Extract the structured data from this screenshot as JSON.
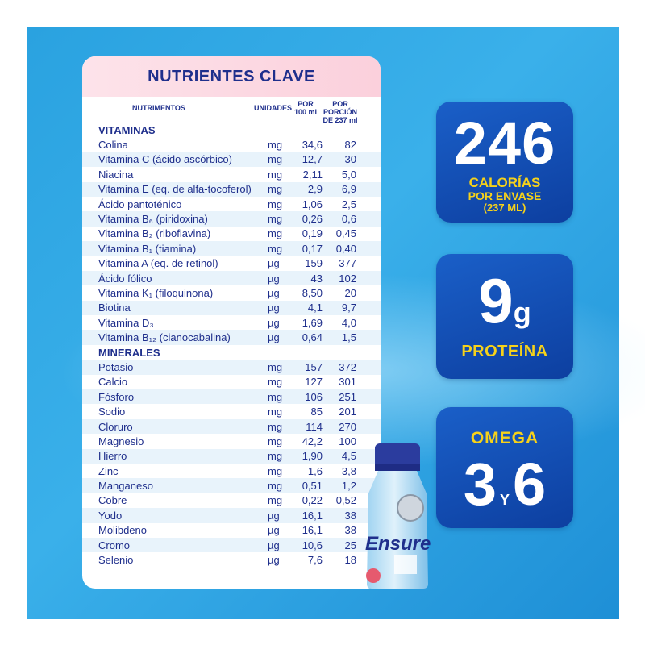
{
  "table": {
    "title": "NUTRIENTES CLAVE",
    "headers": {
      "nutrimentos": "NUTRIMENTOS",
      "unidades": "UNIDADES",
      "por100": "POR 100 ml",
      "porcion": "POR PORCIÓN DE 237 ml"
    },
    "vitaminas_title": "VITAMINAS",
    "vitaminas": [
      {
        "name": "Colina",
        "unit": "mg",
        "v100": "34,6",
        "vporcion": "82"
      },
      {
        "name": "Vitamina C (ácido ascórbico)",
        "unit": "mg",
        "v100": "12,7",
        "vporcion": "30"
      },
      {
        "name": "Niacina",
        "unit": "mg",
        "v100": "2,11",
        "vporcion": "5,0"
      },
      {
        "name": "Vitamina E (eq. de alfa-tocoferol)",
        "unit": "mg",
        "v100": "2,9",
        "vporcion": "6,9"
      },
      {
        "name": "Ácido pantoténico",
        "unit": "mg",
        "v100": "1,06",
        "vporcion": "2,5"
      },
      {
        "name": "Vitamina B₆ (piridoxina)",
        "unit": "mg",
        "v100": "0,26",
        "vporcion": "0,6"
      },
      {
        "name": "Vitamina B₂ (riboflavina)",
        "unit": "mg",
        "v100": "0,19",
        "vporcion": "0,45"
      },
      {
        "name": "Vitamina B₁ (tiamina)",
        "unit": "mg",
        "v100": "0,17",
        "vporcion": "0,40"
      },
      {
        "name": "Vitamina A (eq. de retinol)",
        "unit": "µg",
        "v100": "159",
        "vporcion": "377"
      },
      {
        "name": "Ácido fólico",
        "unit": "µg",
        "v100": "43",
        "vporcion": "102"
      },
      {
        "name": "Vitamina K₁ (filoquinona)",
        "unit": "µg",
        "v100": "8,50",
        "vporcion": "20"
      },
      {
        "name": "Biotina",
        "unit": "µg",
        "v100": "4,1",
        "vporcion": "9,7"
      },
      {
        "name": "Vitamina D₃",
        "unit": "µg",
        "v100": "1,69",
        "vporcion": "4,0"
      },
      {
        "name": "Vitamina B₁₂ (cianocabalina)",
        "unit": "µg",
        "v100": "0,64",
        "vporcion": "1,5"
      }
    ],
    "minerales_title": "MINERALES",
    "minerales": [
      {
        "name": "Potasio",
        "unit": "mg",
        "v100": "157",
        "vporcion": "372"
      },
      {
        "name": "Calcio",
        "unit": "mg",
        "v100": "127",
        "vporcion": "301"
      },
      {
        "name": "Fósforo",
        "unit": "mg",
        "v100": "106",
        "vporcion": "251"
      },
      {
        "name": "Sodio",
        "unit": "mg",
        "v100": "85",
        "vporcion": "201"
      },
      {
        "name": "Cloruro",
        "unit": "mg",
        "v100": "114",
        "vporcion": "270"
      },
      {
        "name": "Magnesio",
        "unit": "mg",
        "v100": "42,2",
        "vporcion": "100"
      },
      {
        "name": "Hierro",
        "unit": "mg",
        "v100": "1,90",
        "vporcion": "4,5"
      },
      {
        "name": "Zinc",
        "unit": "mg",
        "v100": "1,6",
        "vporcion": "3,8"
      },
      {
        "name": "Manganeso",
        "unit": "mg",
        "v100": "0,51",
        "vporcion": "1,2"
      },
      {
        "name": "Cobre",
        "unit": "mg",
        "v100": "0,22",
        "vporcion": "0,52"
      },
      {
        "name": "Yodo",
        "unit": "µg",
        "v100": "16,1",
        "vporcion": "38"
      },
      {
        "name": "Molibdeno",
        "unit": "µg",
        "v100": "16,1",
        "vporcion": "38"
      },
      {
        "name": "Cromo",
        "unit": "µg",
        "v100": "10,6",
        "vporcion": "25"
      },
      {
        "name": "Selenio",
        "unit": "µg",
        "v100": "7,6",
        "vporcion": "18"
      }
    ]
  },
  "badges": {
    "calories": {
      "number": "246",
      "line1": "CALORÍAS",
      "line2": "POR ENVASE",
      "line3": "(237 ML)"
    },
    "protein": {
      "number": "9",
      "unit": "g",
      "label": "PROTEÍNA"
    },
    "omega": {
      "label": "OMEGA",
      "first": "3",
      "connector": "Y",
      "second": "6"
    }
  },
  "product": {
    "brand": "Ensure"
  },
  "colors": {
    "navy": "#1f2f8c",
    "yellow": "#f6d21a",
    "card_blue": "#1450b8",
    "bg_blue": "#2aa2e0",
    "header_pink": "#fbd0dc"
  }
}
